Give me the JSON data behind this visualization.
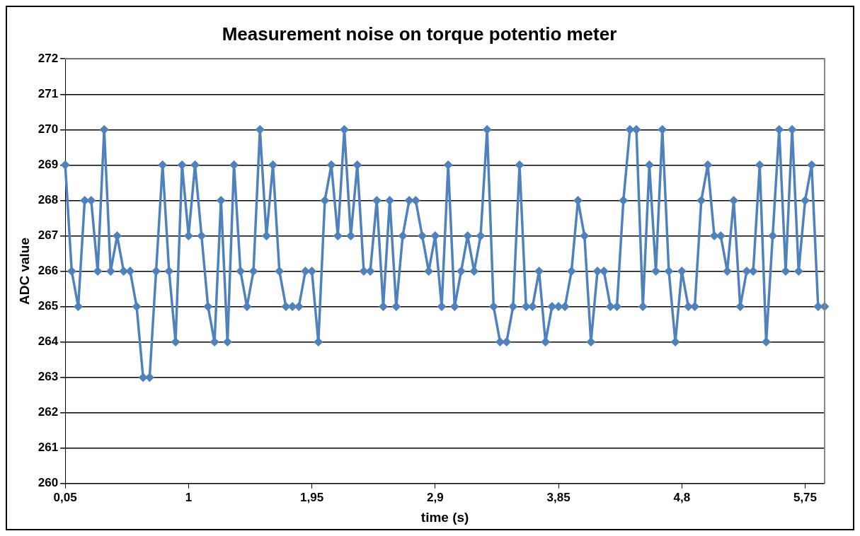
{
  "chart_data": {
    "type": "line",
    "title": "Measurement noise on torque potentio meter",
    "xlabel": "time (s)",
    "ylabel": "ADC value",
    "categories": [
      "0,05",
      null,
      null,
      null,
      null,
      null,
      null,
      null,
      null,
      null,
      null,
      null,
      null,
      null,
      null,
      null,
      null,
      null,
      null,
      "1",
      null,
      null,
      null,
      null,
      null,
      null,
      null,
      null,
      null,
      null,
      null,
      null,
      null,
      null,
      null,
      null,
      null,
      null,
      "1,95",
      null,
      null,
      null,
      null,
      null,
      null,
      null,
      null,
      null,
      null,
      null,
      null,
      null,
      null,
      null,
      null,
      null,
      null,
      "2,9",
      null,
      null,
      null,
      null,
      null,
      null,
      null,
      null,
      null,
      null,
      null,
      null,
      null,
      null,
      null,
      null,
      null,
      null,
      "3,85",
      null,
      null,
      null,
      null,
      null,
      null,
      null,
      null,
      null,
      null,
      null,
      null,
      null,
      null,
      null,
      null,
      null,
      null,
      "4,8",
      null,
      null,
      null,
      null,
      null,
      null,
      null,
      null,
      null,
      null,
      null,
      null,
      null,
      null,
      null,
      null,
      null,
      null,
      "5,75",
      null,
      null,
      null
    ],
    "series": [
      {
        "color": "#4f81bd",
        "values": [
          269,
          266,
          265,
          268,
          268,
          266,
          270,
          266,
          267,
          266,
          266,
          265,
          263,
          263,
          266,
          269,
          266,
          264,
          269,
          267,
          269,
          267,
          265,
          264,
          268,
          264,
          269,
          266,
          265,
          266,
          270,
          267,
          269,
          266,
          265,
          265,
          265,
          266,
          266,
          264,
          268,
          269,
          267,
          270,
          267,
          269,
          266,
          266,
          268,
          265,
          268,
          265,
          267,
          268,
          268,
          267,
          266,
          267,
          265,
          269,
          265,
          266,
          267,
          266,
          267,
          270,
          265,
          264,
          264,
          265,
          269,
          265,
          265,
          266,
          264,
          265,
          265,
          265,
          266,
          268,
          267,
          264,
          266,
          266,
          265,
          265,
          268,
          270,
          270,
          265,
          269,
          266,
          270,
          266,
          264,
          266,
          265,
          265,
          268,
          269,
          267,
          267,
          266,
          268,
          265,
          266,
          266,
          269,
          264,
          267,
          270,
          266,
          270,
          266,
          268,
          269,
          265,
          265
        ]
      }
    ],
    "ylim": [
      260,
      272
    ],
    "yticks": [
      260,
      261,
      262,
      263,
      264,
      265,
      266,
      267,
      268,
      269,
      270,
      271,
      272
    ],
    "grid": "y",
    "legend": false,
    "marker": "diamond",
    "line_style": "solid"
  }
}
